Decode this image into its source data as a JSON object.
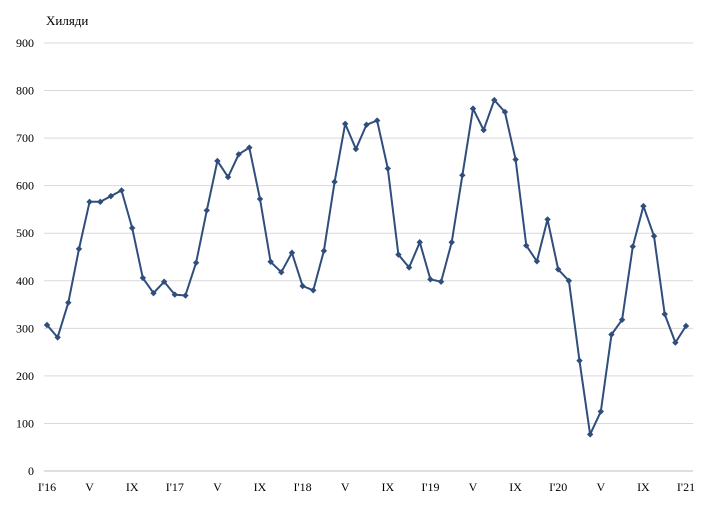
{
  "chart_data": {
    "type": "line",
    "unit_label": "Хиляди",
    "ylim": [
      0,
      900
    ],
    "y_ticks": [
      0,
      100,
      200,
      300,
      400,
      500,
      600,
      700,
      800,
      900
    ],
    "grid": true,
    "legend": "none",
    "line_color": "#2f4e7c",
    "x_tick_labels": [
      {
        "index": 0,
        "label": "I'16"
      },
      {
        "index": 4,
        "label": "V"
      },
      {
        "index": 8,
        "label": "IX"
      },
      {
        "index": 12,
        "label": "I'17"
      },
      {
        "index": 16,
        "label": "V"
      },
      {
        "index": 20,
        "label": "IX"
      },
      {
        "index": 24,
        "label": "I'18"
      },
      {
        "index": 28,
        "label": "V"
      },
      {
        "index": 32,
        "label": "IX"
      },
      {
        "index": 36,
        "label": "I'19"
      },
      {
        "index": 40,
        "label": "V"
      },
      {
        "index": 44,
        "label": "IX"
      },
      {
        "index": 48,
        "label": "I'20"
      },
      {
        "index": 52,
        "label": "V"
      },
      {
        "index": 56,
        "label": "IX"
      },
      {
        "index": 60,
        "label": "I'21"
      }
    ],
    "series": [
      {
        "values": [
          307,
          281,
          354,
          467,
          566,
          566,
          578,
          590,
          511,
          406,
          374,
          398,
          371,
          369,
          438,
          548,
          652,
          618,
          666,
          680,
          572,
          440,
          418,
          459,
          389,
          380,
          463,
          608,
          730,
          677,
          728,
          737,
          636,
          455,
          428,
          481,
          403,
          398,
          481,
          622,
          762,
          717,
          780,
          755,
          655,
          474,
          441,
          529,
          424,
          400,
          232,
          77,
          125,
          287,
          318,
          472,
          557,
          494,
          330,
          270,
          305
        ]
      }
    ]
  }
}
